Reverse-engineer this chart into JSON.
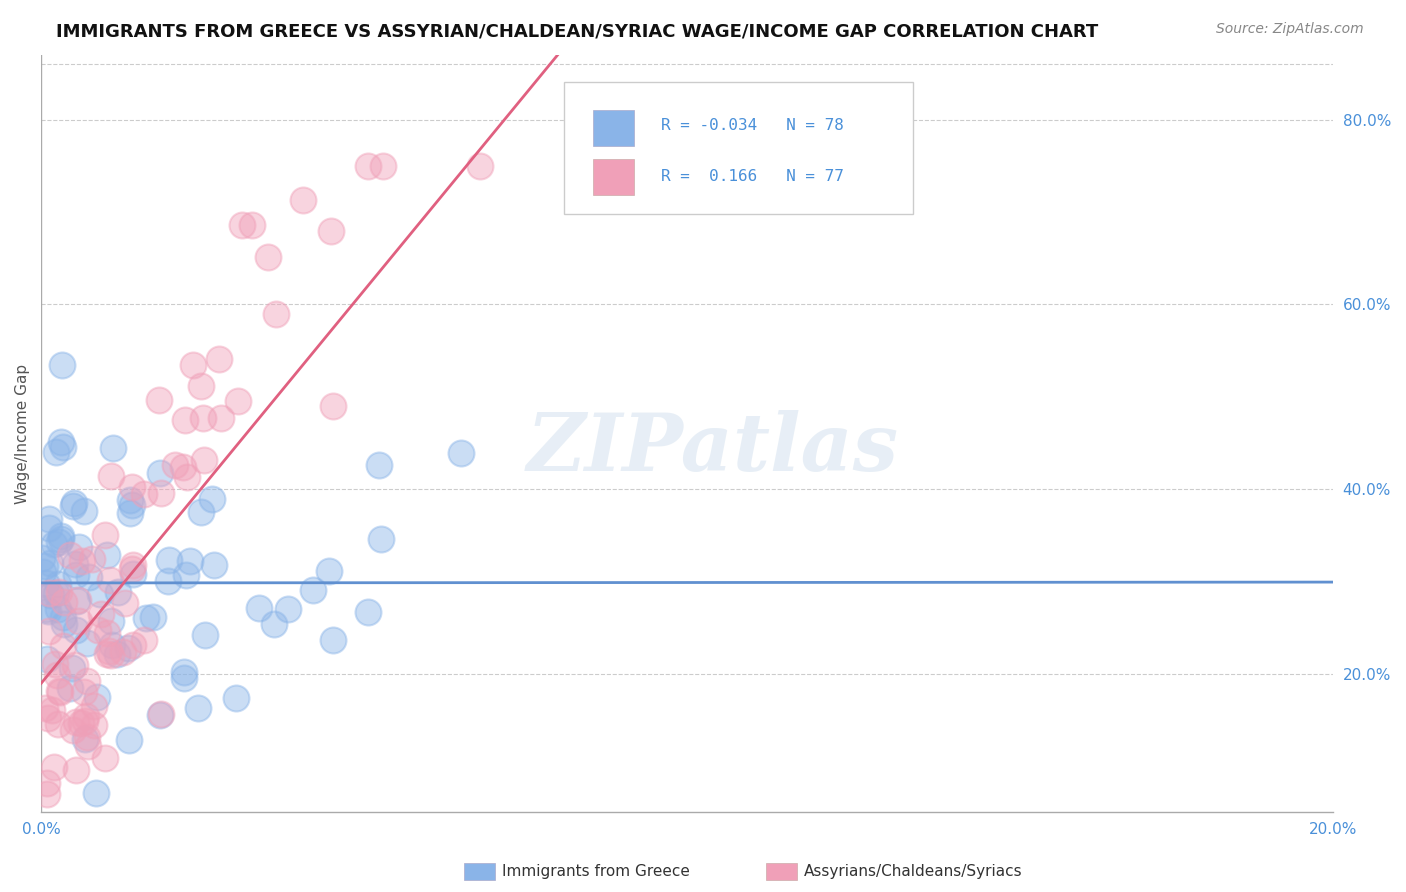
{
  "title": "IMMIGRANTS FROM GREECE VS ASSYRIAN/CHALDEAN/SYRIAC WAGE/INCOME GAP CORRELATION CHART",
  "source": "Source: ZipAtlas.com",
  "ylabel": "Wage/Income Gap",
  "right_yticks": [
    "20.0%",
    "40.0%",
    "60.0%",
    "80.0%"
  ],
  "right_ytick_vals": [
    0.2,
    0.4,
    0.6,
    0.8
  ],
  "xmin": 0.0,
  "xmax": 0.2,
  "ymin": 0.05,
  "ymax": 0.87,
  "blue_color": "#8ab4e8",
  "pink_color": "#f0a0b8",
  "blue_line_color": "#6090d0",
  "pink_line_color": "#e06080",
  "blue_label": "Immigrants from Greece",
  "pink_label": "Assyrians/Chaldeans/Syriacs",
  "blue_R": -0.034,
  "blue_N": 78,
  "pink_R": 0.166,
  "pink_N": 77,
  "watermark": "ZIPatlas",
  "background_color": "#ffffff",
  "grid_color": "#cccccc"
}
